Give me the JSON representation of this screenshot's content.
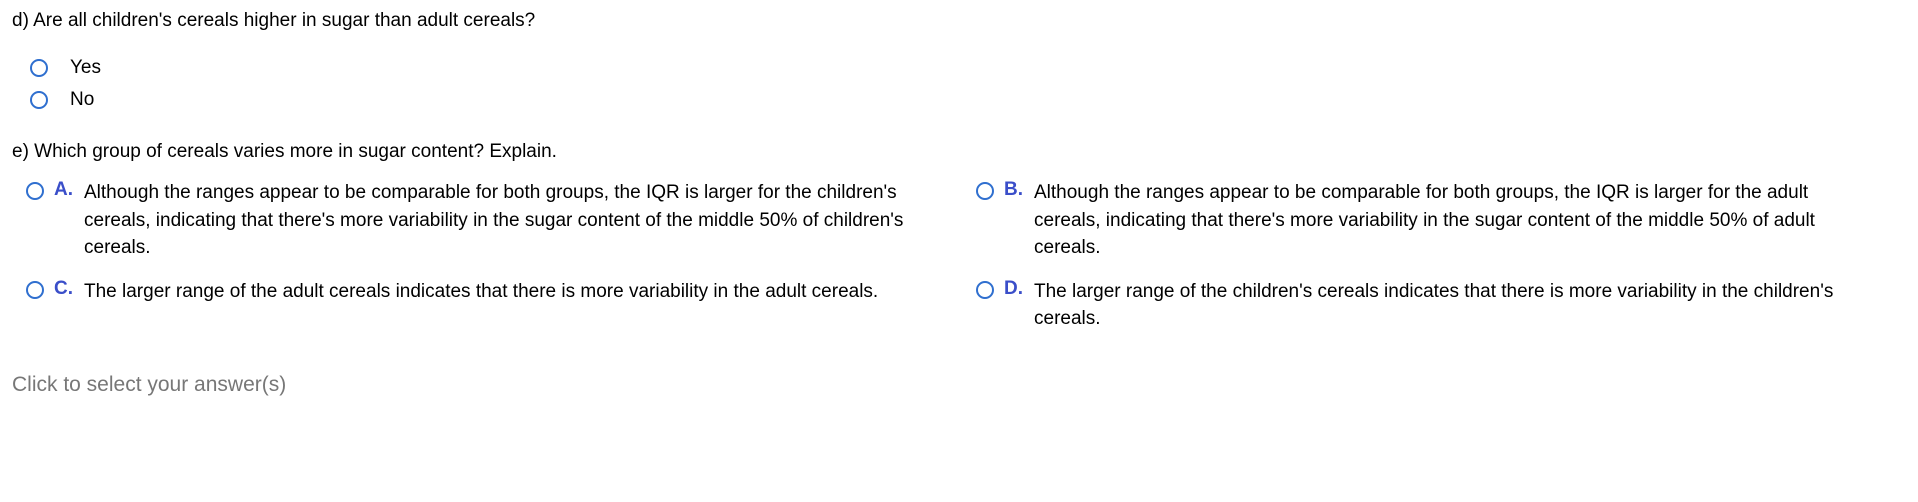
{
  "question_d": {
    "prompt": "d) Are all children's cereals higher in sugar than adult cereals?",
    "options": [
      {
        "label": "Yes"
      },
      {
        "label": "No"
      }
    ]
  },
  "question_e": {
    "prompt": "e) Which group of cereals varies more in sugar content? Explain.",
    "options": [
      {
        "letter": "A.",
        "text": "Although the ranges appear to be comparable for both groups, the IQR is larger for the children's cereals, indicating that there's more variability in the sugar content of the middle 50% of children's cereals."
      },
      {
        "letter": "B.",
        "text": "Although the ranges appear to be comparable for both groups, the IQR is larger for the adult cereals, indicating that there's more variability in the sugar content of the middle 50% of adult cereals."
      },
      {
        "letter": "C.",
        "text": "The larger range of the adult cereals indicates that there is more variability in the adult cereals."
      },
      {
        "letter": "D.",
        "text": "The larger range of the children's cereals indicates that there is more variability in the children's cereals."
      }
    ]
  },
  "footer": "Click to select your answer(s)",
  "colors": {
    "radio_border": "#2f6fcf",
    "letter_color": "#3a4ec9",
    "footer_color": "#777777",
    "text_color": "#000000",
    "background": "#ffffff"
  }
}
